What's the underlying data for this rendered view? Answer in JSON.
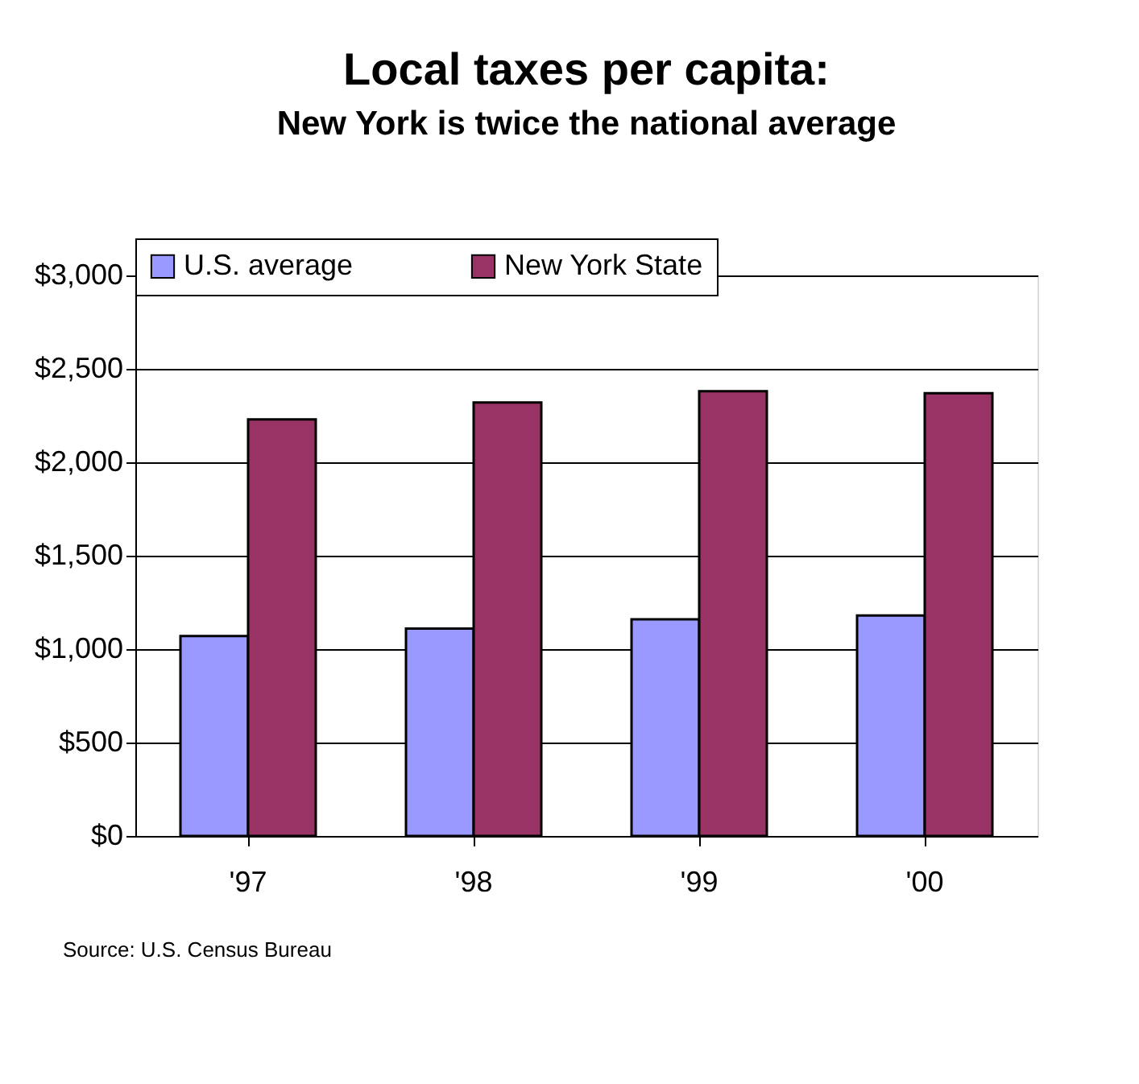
{
  "chart_data": {
    "type": "bar",
    "title": "Local taxes per capita:",
    "subtitle": "New York is twice the national average",
    "categories": [
      "'97",
      "'98",
      "'99",
      "'00"
    ],
    "series": [
      {
        "name": "U.S. average",
        "color": "#9999ff",
        "values": [
          1070,
          1110,
          1160,
          1180
        ]
      },
      {
        "name": "New York State",
        "color": "#993366",
        "values": [
          2230,
          2320,
          2380,
          2370
        ]
      }
    ],
    "ylim": [
      0,
      3000
    ],
    "yticks": [
      {
        "value": 0,
        "label": "$0"
      },
      {
        "value": 500,
        "label": "$500"
      },
      {
        "value": 1000,
        "label": "$1,000"
      },
      {
        "value": 1500,
        "label": "$1,500"
      },
      {
        "value": 2000,
        "label": "$2,000"
      },
      {
        "value": 2500,
        "label": "$2,500"
      },
      {
        "value": 3000,
        "label": "$3,000"
      }
    ],
    "grid": "y",
    "legend": "top",
    "annotations": [
      "Source: U.S. Census Bureau"
    ]
  }
}
